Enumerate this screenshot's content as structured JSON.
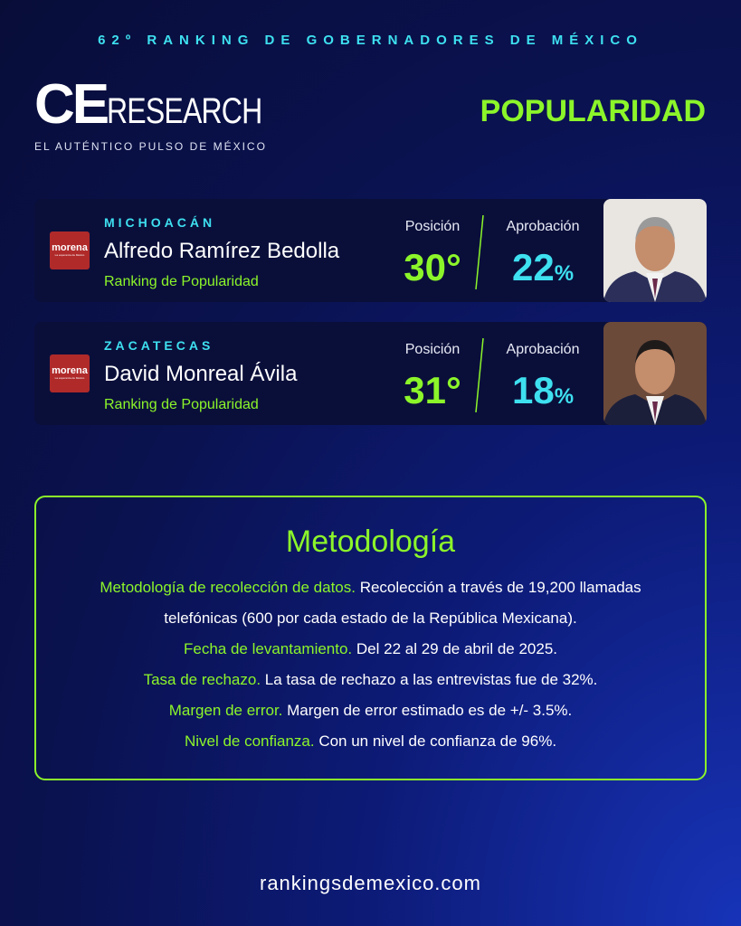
{
  "header": {
    "kicker": "62º RANKING DE GOBERNADORES DE MÉXICO",
    "logo_main": "CE",
    "logo_sub": "RESEARCH",
    "tagline": "EL AUTÉNTICO PULSO DE MÉXICO",
    "section": "POPULARIDAD"
  },
  "cards": [
    {
      "state": "MICHOACÁN",
      "name": "Alfredo Ramírez Bedolla",
      "subtitle": "Ranking de Popularidad",
      "party": "morena",
      "party_slogan": "La esperanza de México",
      "position_label": "Posición",
      "position": "30°",
      "approval_label": "Aprobación",
      "approval": "22",
      "approval_unit": "%"
    },
    {
      "state": "ZACATECAS",
      "name": "David Monreal Ávila",
      "subtitle": "Ranking de Popularidad",
      "party": "morena",
      "party_slogan": "La esperanza de México",
      "position_label": "Posición",
      "position": "31°",
      "approval_label": "Aprobación",
      "approval": "18",
      "approval_unit": "%"
    }
  ],
  "methodology": {
    "title": "Metodología",
    "items": [
      {
        "label": "Metodología de recolección de datos.",
        "text": "Recolección a través de 19,200 llamadas telefónicas (600 por cada estado de la República Mexicana)."
      },
      {
        "label": "Fecha de levantamiento.",
        "text": "Del 22 al 29 de abril de 2025."
      },
      {
        "label": "Tasa de rechazo.",
        "text": "La tasa de rechazo a las entrevistas fue de 32%."
      },
      {
        "label": "Margen de error.",
        "text": "Margen de error estimado es de +/- 3.5%."
      },
      {
        "label": "Nivel de confianza.",
        "text": "Con un nivel de confianza de 96%."
      }
    ]
  },
  "footer": {
    "url": "rankingsdemexico.com"
  }
}
